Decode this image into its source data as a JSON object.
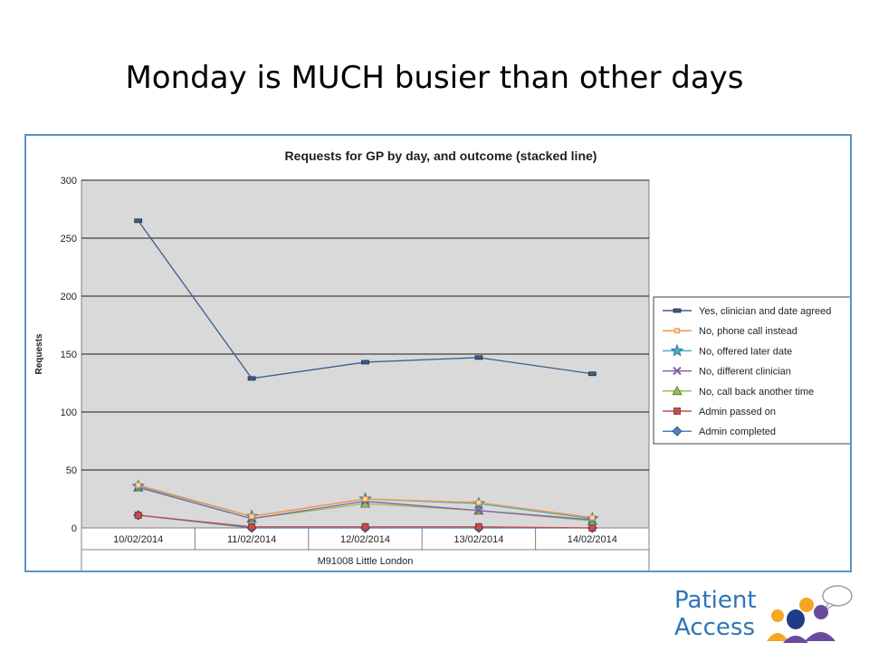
{
  "slide": {
    "title": "Monday is MUCH busier than other days"
  },
  "logo": {
    "line1": "Patient",
    "line2": "Access",
    "colors": {
      "text": "#2e75b6",
      "orange": "#f5a623",
      "blue": "#1f3c88",
      "purple": "#6a4a9c"
    }
  },
  "chart_data": {
    "type": "line",
    "title": "Requests for GP by day, and outcome (stacked line)",
    "ylabel": "Requests",
    "xlabel": "M91008 Little London",
    "ylim": [
      0,
      300
    ],
    "yticks": [
      0,
      50,
      100,
      150,
      200,
      250,
      300
    ],
    "grid": true,
    "legend_position": "right",
    "plot_background": "#d9d9d9",
    "categories": [
      "10/02/2014",
      "11/02/2014",
      "12/02/2014",
      "13/02/2014",
      "14/02/2014"
    ],
    "series": [
      {
        "name": "Yes, clinician and date agreed",
        "values": [
          265,
          129,
          143,
          147,
          133
        ],
        "color": "#3a5f8a",
        "marker": "dash"
      },
      {
        "name": "No, phone call instead",
        "values": [
          37,
          10,
          25,
          22,
          9
        ],
        "color": "#f79646",
        "marker": "small-square"
      },
      {
        "name": "No, offered later date",
        "values": [
          36,
          10,
          25,
          21,
          8
        ],
        "color": "#4bacc6",
        "marker": "star"
      },
      {
        "name": "No, different clinician",
        "values": [
          35,
          8,
          23,
          15,
          7
        ],
        "color": "#8064a2",
        "marker": "x"
      },
      {
        "name": "No, call back another time",
        "values": [
          35,
          8,
          21,
          15,
          6
        ],
        "color": "#9bbb59",
        "marker": "triangle"
      },
      {
        "name": "Admin passed on",
        "values": [
          11,
          1,
          1,
          1,
          0
        ],
        "color": "#c0504d",
        "marker": "square"
      },
      {
        "name": "Admin completed",
        "values": [
          11,
          0,
          0,
          0,
          0
        ],
        "color": "#4f81bd",
        "marker": "diamond"
      }
    ]
  }
}
